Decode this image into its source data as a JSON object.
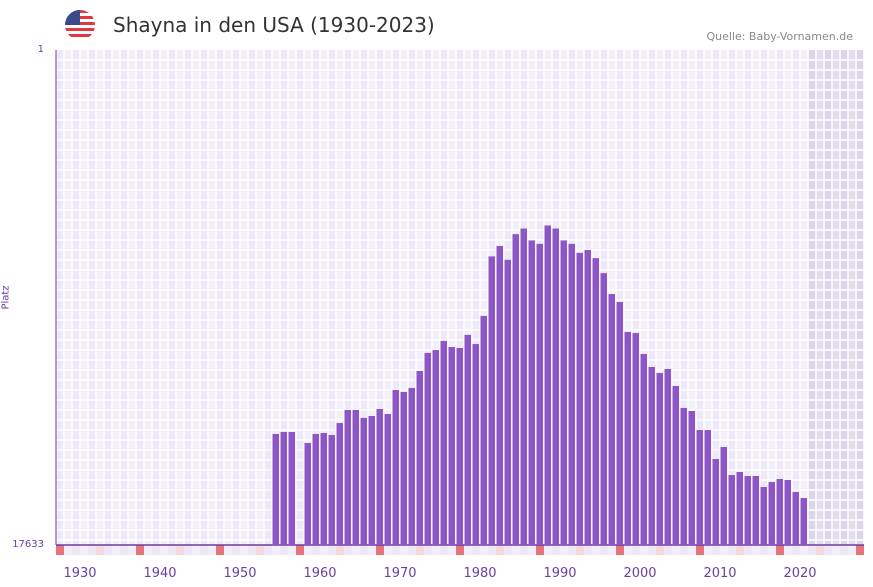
{
  "header": {
    "title": "Shayna in den USA (1930-2023)",
    "source": "Quelle: Baby-Vornamen.de",
    "flag_icon": "us-flag-icon"
  },
  "chart_data": {
    "type": "bar",
    "title": "Shayna in den USA (1930-2023)",
    "xlabel": "",
    "ylabel": "Platz",
    "ylim": [
      1,
      17633
    ],
    "y_ticks": [
      "1",
      "17633"
    ],
    "y_scale": "log, inverted (rank 1 at top)",
    "xlim": [
      1929,
      2029
    ],
    "x_ticks": [
      "1930",
      "1940",
      "1950",
      "1960",
      "1970",
      "1980",
      "1990",
      "2000",
      "2010",
      "2020"
    ],
    "bar_color": "#8e55c6",
    "years": [
      1956,
      1957,
      1958,
      1959,
      1960,
      1961,
      1962,
      1963,
      1964,
      1965,
      1966,
      1967,
      1968,
      1969,
      1970,
      1971,
      1972,
      1973,
      1974,
      1975,
      1976,
      1977,
      1978,
      1979,
      1980,
      1981,
      1982,
      1983,
      1984,
      1985,
      1986,
      1987,
      1988,
      1989,
      1990,
      1991,
      1992,
      1993,
      1994,
      1995,
      1996,
      1997,
      1998,
      1999,
      2000,
      2001,
      2002,
      2003,
      2004,
      2005,
      2006,
      2007,
      2008,
      2009,
      2010,
      2011,
      2012,
      2013,
      2014,
      2015,
      2016,
      2017,
      2018,
      2019,
      2020,
      2021,
      2022
    ],
    "ranks": [
      1968,
      1891,
      1891,
      null,
      2350,
      1968,
      1929,
      2007,
      1584,
      1225,
      1225,
      1433,
      1379,
      1201,
      1326,
      825,
      858,
      793,
      567,
      397,
      375,
      313,
      353,
      360,
      278,
      333,
      191,
      59,
      48,
      63,
      38,
      34,
      43,
      46,
      32,
      34,
      43,
      46,
      55,
      52,
      61,
      82,
      124,
      145,
      262,
      268,
      405,
      524,
      590,
      545,
      762,
      1177,
      1250,
      1818,
      1818,
      3227,
      2545,
      4427,
      4170,
      4513,
      4513,
      5609,
      5080,
      4785,
      4885,
      6193,
      6971
    ]
  }
}
